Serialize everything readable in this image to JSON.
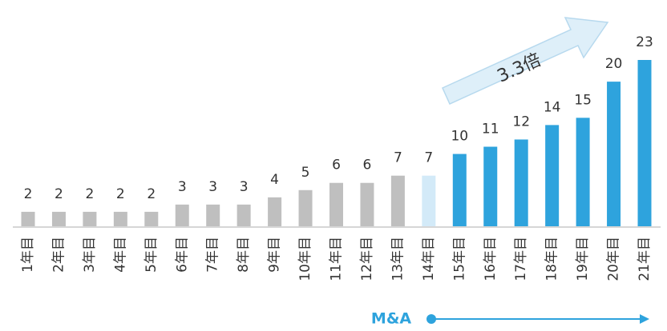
{
  "chart_data": {
    "type": "bar",
    "categories": [
      "1年目",
      "2年目",
      "3年目",
      "4年目",
      "5年目",
      "6年目",
      "7年目",
      "8年目",
      "9年目",
      "10年目",
      "11年目",
      "12年目",
      "13年目",
      "14年目",
      "15年目",
      "16年目",
      "17年目",
      "18年目",
      "19年目",
      "20年目",
      "21年目"
    ],
    "values": [
      2,
      2,
      2,
      2,
      2,
      3,
      3,
      3,
      4,
      5,
      6,
      6,
      7,
      7,
      10,
      11,
      12,
      14,
      15,
      20,
      23
    ],
    "colors": [
      "#bfbfbf",
      "#bfbfbf",
      "#bfbfbf",
      "#bfbfbf",
      "#bfbfbf",
      "#bfbfbf",
      "#bfbfbf",
      "#bfbfbf",
      "#bfbfbf",
      "#bfbfbf",
      "#bfbfbf",
      "#bfbfbf",
      "#bfbfbf",
      "#d3eaf8",
      "#2ea3dd",
      "#2ea3dd",
      "#2ea3dd",
      "#2ea3dd",
      "#2ea3dd",
      "#2ea3dd",
      "#2ea3dd"
    ],
    "annotations": [
      "3.3倍",
      "M&A"
    ]
  }
}
